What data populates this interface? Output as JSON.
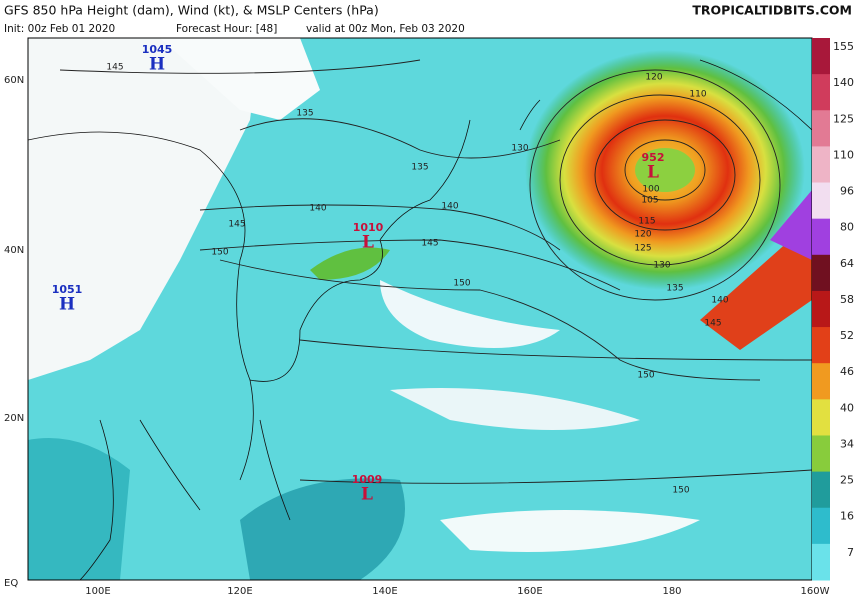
{
  "header": {
    "title": "GFS 850 hPa Height (dam), Wind (kt), & MSLP Centers (hPa)",
    "site": "TROPICALTIDBITS.COM",
    "init": "Init: 00z Feb 01 2020",
    "forecast_hour": "Forecast Hour: [48]",
    "valid": "valid at 00z Mon, Feb 03 2020"
  },
  "map": {
    "lat_labels": [
      "60N",
      "40N",
      "20N",
      "EQ"
    ],
    "lon_labels": [
      "100E",
      "120E",
      "140E",
      "160E",
      "180",
      "160W"
    ],
    "pressure_centers": [
      {
        "value": "1045",
        "type": "H"
      },
      {
        "value": "1051",
        "type": "H"
      },
      {
        "value": "1010",
        "type": "L"
      },
      {
        "value": "952",
        "type": "L"
      },
      {
        "value": "1009",
        "type": "L"
      }
    ],
    "contour_labels": [
      "145",
      "135",
      "140",
      "145",
      "150",
      "135",
      "140",
      "145",
      "150",
      "120",
      "110",
      "100",
      "105",
      "115",
      "120",
      "125",
      "130",
      "135",
      "140",
      "145",
      "150",
      "130",
      "150"
    ]
  },
  "colorbar": {
    "labels": [
      "155",
      "140",
      "125",
      "110",
      "96",
      "80",
      "64",
      "58",
      "52",
      "46",
      "40",
      "34",
      "25",
      "16",
      "7"
    ]
  }
}
